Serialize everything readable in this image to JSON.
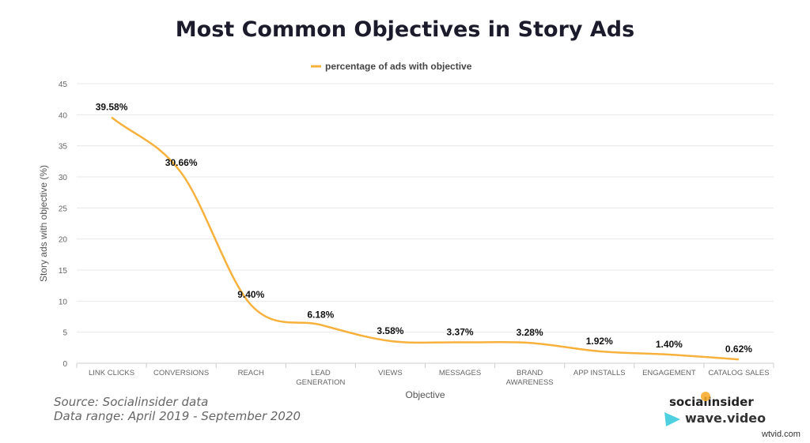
{
  "title": "Most Common Objectives in Story Ads",
  "source_lines": [
    "Source: Socialinsider data",
    "Data range: April 2019 - September 2020"
  ],
  "logos": {
    "socialinsider": "socialinsider",
    "wavevideo": "wave.video",
    "watermark": "wtvid.com"
  },
  "chart_data": {
    "type": "line",
    "smooth": true,
    "categories": [
      [
        "LINK CLICKS"
      ],
      [
        "CONVERSIONS"
      ],
      [
        "REACH"
      ],
      [
        "LEAD",
        "GENERATION"
      ],
      [
        "VIEWS"
      ],
      [
        "MESSAGES"
      ],
      [
        "BRAND",
        "AWARENESS"
      ],
      [
        "APP INSTALLS"
      ],
      [
        "ENGAGEMENT"
      ],
      [
        "CATALOG SALES"
      ]
    ],
    "series": [
      {
        "name": "percentage of ads with objective",
        "values": [
          39.58,
          30.66,
          9.4,
          6.18,
          3.58,
          3.37,
          3.28,
          1.92,
          1.4,
          0.62
        ],
        "labels": [
          "39.58%",
          "30.66%",
          "9.40%",
          "6.18%",
          "3.58%",
          "3.37%",
          "3.28%",
          "1.92%",
          "1.40%",
          "0.62%"
        ],
        "color": "#f7b13d"
      }
    ],
    "xlabel": "Objective",
    "ylabel": "Story ads with objective (%)",
    "ylim": [
      0,
      45
    ],
    "yticks": [
      0,
      5,
      10,
      15,
      20,
      25,
      30,
      35,
      40,
      45
    ],
    "grid": true,
    "legend": "top-center"
  }
}
